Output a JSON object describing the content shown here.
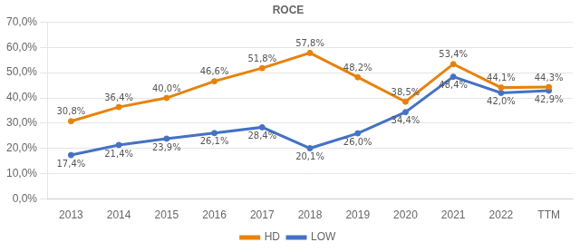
{
  "chart_data": {
    "type": "line",
    "title": "ROCE",
    "categories": [
      "2013",
      "2014",
      "2015",
      "2016",
      "2017",
      "2018",
      "2019",
      "2020",
      "2021",
      "2022",
      "TTM"
    ],
    "series": [
      {
        "name": "HD",
        "color": "#E8820C",
        "values": [
          30.8,
          36.4,
          40.0,
          46.6,
          51.8,
          57.8,
          48.2,
          38.5,
          53.4,
          44.1,
          44.3
        ],
        "value_labels": [
          "30,8%",
          "36,4%",
          "40,0%",
          "46,6%",
          "51,8%",
          "57,8%",
          "48,2%",
          "38,5%",
          "53,4%",
          "44,1%",
          "44,3%"
        ]
      },
      {
        "name": "LOW",
        "color": "#4472C4",
        "values": [
          17.4,
          21.4,
          23.9,
          26.1,
          28.4,
          20.1,
          26.0,
          34.4,
          48.4,
          42.0,
          42.9
        ],
        "value_labels": [
          "17,4%",
          "21,4%",
          "23,9%",
          "26,1%",
          "28,4%",
          "20,1%",
          "26,0%",
          "34,4%",
          "48,4%",
          "42,0%",
          "42,9%"
        ]
      }
    ],
    "ylim": [
      0,
      70
    ],
    "yticks": [
      {
        "value": 0,
        "label": "0,0%"
      },
      {
        "value": 10,
        "label": "10,0%"
      },
      {
        "value": 20,
        "label": "20,0%"
      },
      {
        "value": 30,
        "label": "30,0%"
      },
      {
        "value": 40,
        "label": "40,0%"
      },
      {
        "value": 50,
        "label": "50,0%"
      },
      {
        "value": 60,
        "label": "60,0%"
      },
      {
        "value": 70,
        "label": "70,0%"
      }
    ],
    "grid": true,
    "legend": "bottom",
    "data_labels": true
  }
}
